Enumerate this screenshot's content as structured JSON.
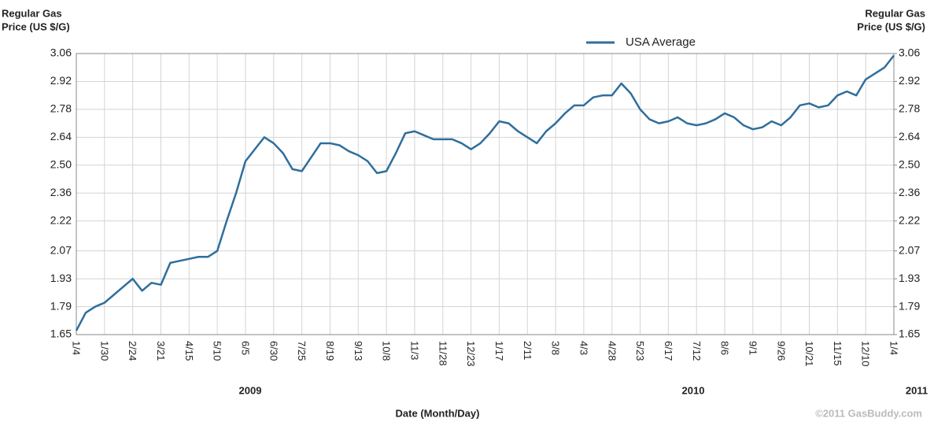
{
  "chart_data": {
    "type": "line",
    "y_label": [
      "Regular Gas",
      "Price (US $/G)"
    ],
    "y2_label": [
      "Regular Gas",
      "Price (US $/G)"
    ],
    "x_label": "Date (Month/Day)",
    "year_labels": [
      "2009",
      "2010",
      "2011"
    ],
    "watermark": "©2011 GasBuddy.com",
    "legend": "top-right",
    "grid": true,
    "categories": [
      "1/4",
      null,
      null,
      "1/30",
      null,
      null,
      "2/24",
      null,
      null,
      "3/21",
      null,
      null,
      "4/15",
      null,
      null,
      "5/10",
      null,
      null,
      "6/5",
      null,
      null,
      "6/30",
      null,
      null,
      "7/25",
      null,
      null,
      "8/19",
      null,
      null,
      "9/13",
      null,
      null,
      "10/8",
      null,
      null,
      "11/3",
      null,
      null,
      "11/28",
      null,
      null,
      "12/23",
      null,
      null,
      "1/17",
      null,
      null,
      "2/11",
      null,
      null,
      "3/8",
      null,
      null,
      "4/3",
      null,
      null,
      "4/28",
      null,
      null,
      "5/23",
      null,
      null,
      "6/17",
      null,
      null,
      "7/12",
      null,
      null,
      "8/6",
      null,
      null,
      "9/1",
      null,
      null,
      "9/26",
      null,
      null,
      "10/21",
      null,
      null,
      "11/15",
      null,
      null,
      "12/10",
      null,
      null,
      "1/4"
    ],
    "series": [
      {
        "name": "USA Average",
        "color": "#2f6e9c",
        "values": [
          1.67,
          1.76,
          1.79,
          1.81,
          1.85,
          1.89,
          1.93,
          1.87,
          1.91,
          1.9,
          2.01,
          2.02,
          2.03,
          2.04,
          2.04,
          2.07,
          2.22,
          2.36,
          2.52,
          2.58,
          2.64,
          2.61,
          2.56,
          2.48,
          2.47,
          2.54,
          2.61,
          2.61,
          2.6,
          2.57,
          2.55,
          2.52,
          2.46,
          2.47,
          2.56,
          2.66,
          2.67,
          2.65,
          2.63,
          2.63,
          2.63,
          2.61,
          2.58,
          2.61,
          2.66,
          2.72,
          2.71,
          2.67,
          2.64,
          2.61,
          2.67,
          2.71,
          2.76,
          2.8,
          2.8,
          2.84,
          2.85,
          2.85,
          2.91,
          2.86,
          2.78,
          2.73,
          2.71,
          2.72,
          2.74,
          2.71,
          2.7,
          2.71,
          2.73,
          2.76,
          2.74,
          2.7,
          2.68,
          2.69,
          2.72,
          2.7,
          2.74,
          2.8,
          2.81,
          2.79,
          2.8,
          2.85,
          2.87,
          2.85,
          2.93,
          2.96,
          2.99,
          3.05
        ]
      }
    ],
    "ylim": [
      1.65,
      3.06
    ],
    "yticks": [
      1.65,
      1.79,
      1.93,
      2.07,
      2.22,
      2.36,
      {
        "value": 2.5,
        "label": "2.50"
      },
      2.64,
      2.78,
      2.92,
      3.06
    ],
    "y2lim": [
      1.65,
      3.06
    ],
    "y2ticks": [
      1.65,
      1.79,
      1.93,
      2.07,
      2.22,
      2.36,
      {
        "value": 2.5,
        "label": "2.50"
      },
      2.64,
      2.78,
      2.92,
      3.06
    ]
  }
}
